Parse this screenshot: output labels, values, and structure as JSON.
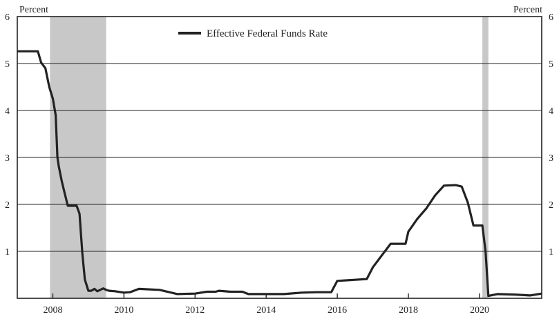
{
  "chart_data": {
    "type": "line",
    "title": "",
    "ylabel_left": "Percent",
    "ylabel_right": "Percent",
    "xlabel": "",
    "xlim": [
      2007.0,
      2021.75
    ],
    "ylim": [
      0,
      6
    ],
    "y_ticks": [
      {
        "value": 1,
        "label": "1"
      },
      {
        "value": 2,
        "label": "2"
      },
      {
        "value": 3,
        "label": "3"
      },
      {
        "value": 4,
        "label": "4"
      },
      {
        "value": 5,
        "label": "5"
      },
      {
        "value": 6,
        "label": "6"
      }
    ],
    "x_ticks": [
      {
        "value": 2008,
        "label": "2008"
      },
      {
        "value": 2010,
        "label": "2010"
      },
      {
        "value": 2012,
        "label": "2012"
      },
      {
        "value": 2014,
        "label": "2014"
      },
      {
        "value": 2016,
        "label": "2016"
      },
      {
        "value": 2018,
        "label": "2018"
      },
      {
        "value": 2020,
        "label": "2020"
      }
    ],
    "grid": "horizontal",
    "legend": {
      "placement": "top-center",
      "entries": [
        "Effective Federal Funds Rate"
      ]
    },
    "recessions": [
      {
        "start": 2007.92,
        "end": 2009.5
      },
      {
        "start": 2020.08,
        "end": 2020.25
      }
    ],
    "colors": {
      "line": "#222222",
      "recession": "#c8c8c8",
      "grid": "#222222"
    },
    "series": [
      {
        "name": "Effective Federal Funds Rate",
        "points": [
          [
            2007.0,
            5.26
          ],
          [
            2007.58,
            5.26
          ],
          [
            2007.67,
            5.02
          ],
          [
            2007.79,
            4.9
          ],
          [
            2007.9,
            4.5
          ],
          [
            2008.0,
            4.25
          ],
          [
            2008.08,
            3.9
          ],
          [
            2008.13,
            3.0
          ],
          [
            2008.17,
            2.8
          ],
          [
            2008.25,
            2.5
          ],
          [
            2008.33,
            2.25
          ],
          [
            2008.42,
            1.97
          ],
          [
            2008.67,
            1.97
          ],
          [
            2008.75,
            1.8
          ],
          [
            2008.83,
            0.95
          ],
          [
            2008.9,
            0.4
          ],
          [
            2009.0,
            0.16
          ],
          [
            2009.08,
            0.16
          ],
          [
            2009.17,
            0.2
          ],
          [
            2009.25,
            0.15
          ],
          [
            2009.42,
            0.21
          ],
          [
            2009.5,
            0.18
          ],
          [
            2009.58,
            0.16
          ],
          [
            2009.75,
            0.15
          ],
          [
            2010.0,
            0.12
          ],
          [
            2010.17,
            0.13
          ],
          [
            2010.42,
            0.2
          ],
          [
            2011.0,
            0.18
          ],
          [
            2011.5,
            0.09
          ],
          [
            2012.0,
            0.1
          ],
          [
            2012.33,
            0.14
          ],
          [
            2012.58,
            0.14
          ],
          [
            2012.67,
            0.16
          ],
          [
            2013.0,
            0.14
          ],
          [
            2013.33,
            0.14
          ],
          [
            2013.5,
            0.09
          ],
          [
            2014.0,
            0.09
          ],
          [
            2014.5,
            0.09
          ],
          [
            2015.0,
            0.12
          ],
          [
            2015.42,
            0.13
          ],
          [
            2015.83,
            0.13
          ],
          [
            2016.0,
            0.37
          ],
          [
            2016.83,
            0.41
          ],
          [
            2017.0,
            0.66
          ],
          [
            2017.25,
            0.91
          ],
          [
            2017.5,
            1.16
          ],
          [
            2017.92,
            1.16
          ],
          [
            2018.0,
            1.42
          ],
          [
            2018.25,
            1.69
          ],
          [
            2018.5,
            1.91
          ],
          [
            2018.75,
            2.19
          ],
          [
            2019.0,
            2.4
          ],
          [
            2019.33,
            2.41
          ],
          [
            2019.5,
            2.38
          ],
          [
            2019.67,
            2.04
          ],
          [
            2019.83,
            1.55
          ],
          [
            2020.08,
            1.55
          ],
          [
            2020.17,
            1.0
          ],
          [
            2020.25,
            0.05
          ],
          [
            2020.5,
            0.09
          ],
          [
            2021.0,
            0.08
          ],
          [
            2021.42,
            0.06
          ],
          [
            2021.75,
            0.1
          ]
        ]
      }
    ]
  }
}
